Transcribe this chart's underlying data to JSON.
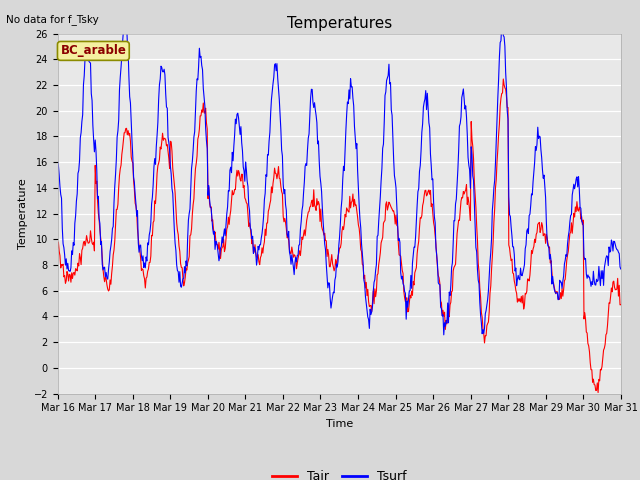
{
  "title": "Temperatures",
  "xlabel": "Time",
  "ylabel": "Temperature",
  "annotation": "No data for f_Tsky",
  "legend_label": "BC_arable",
  "tair_label": "Tair",
  "tsurf_label": "Tsurf",
  "ylim": [
    -2,
    26
  ],
  "tair_color": "#ff0000",
  "tsurf_color": "#0000ff",
  "start_day": 16,
  "n_days": 15,
  "points_per_day": 48,
  "fig_bg": "#d8d8d8",
  "plot_bg": "#e8e8e8",
  "grid_color": "#ffffff",
  "title_fontsize": 11,
  "label_fontsize": 8,
  "tick_fontsize": 7
}
